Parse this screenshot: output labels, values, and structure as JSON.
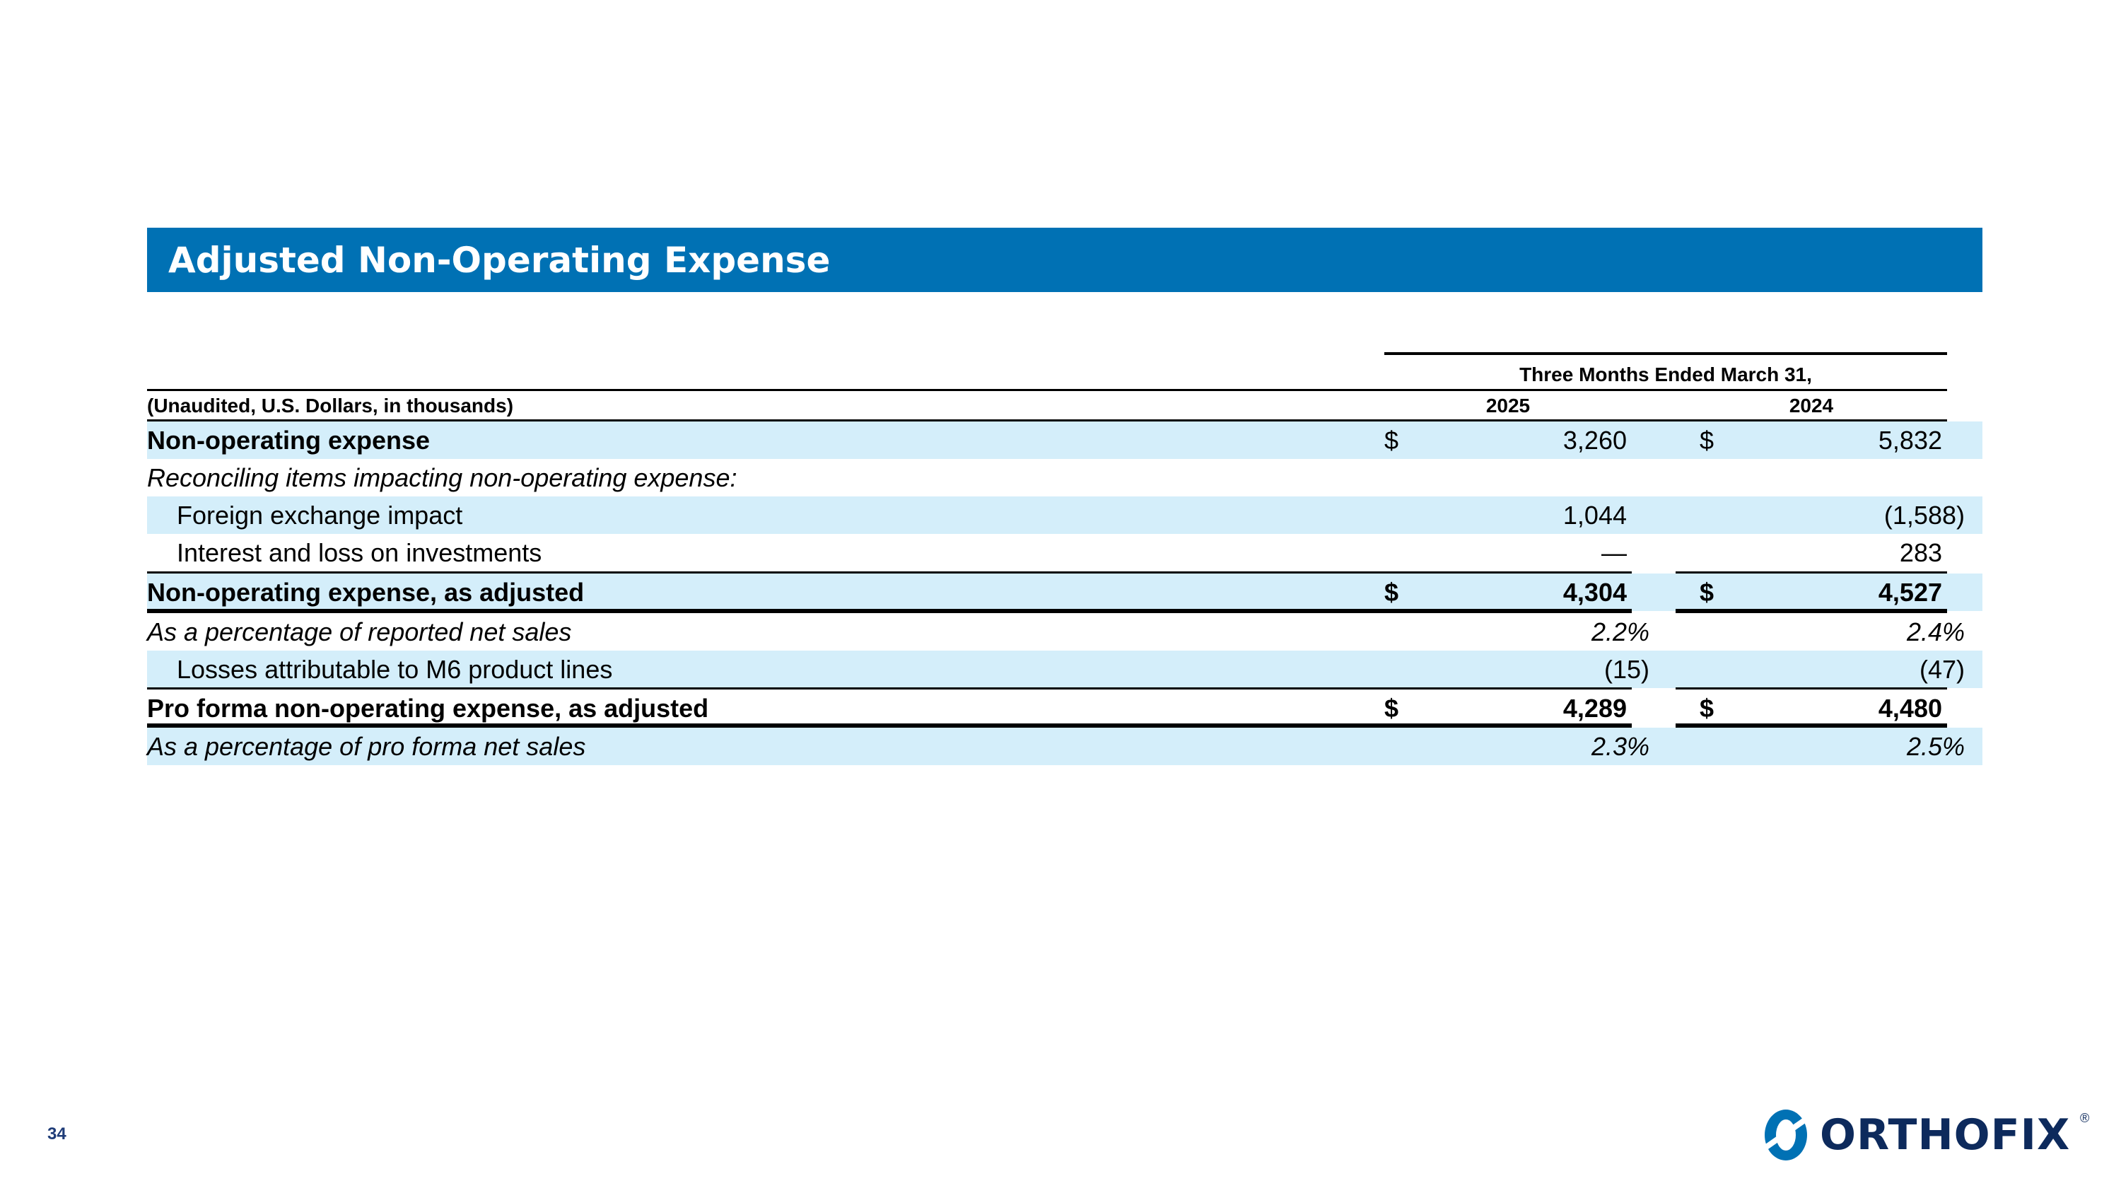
{
  "title": "Adjusted Non-Operating Expense",
  "header": {
    "period": "Three Months Ended March 31,",
    "units": "(Unaudited, U.S. Dollars, in thousands)",
    "year1": "2025",
    "year2": "2024"
  },
  "rows": [
    {
      "label": "Non-operating expense",
      "cur1": "$",
      "v1": "3,260",
      "cur2": "$",
      "v2": "5,832"
    },
    {
      "label": "Reconciling items impacting non-operating expense:"
    },
    {
      "label": "Foreign exchange impact",
      "v1": "1,044",
      "v2": "(1,588",
      "v2_close": ")"
    },
    {
      "label": "Interest and loss on investments",
      "v1": "—",
      "v2": "283"
    },
    {
      "label": "Non-operating expense, as adjusted",
      "cur1": "$",
      "v1": "4,304",
      "cur2": "$",
      "v2": "4,527"
    },
    {
      "label": "As a percentage of reported net sales",
      "v1": "2.2%",
      "v2": "2.4%"
    },
    {
      "label": "Losses attributable to M6 product lines",
      "v1": "(15",
      "v1_close": ")",
      "v2": "(47",
      "v2_close": ")"
    },
    {
      "label": "Pro forma non-operating expense, as adjusted",
      "cur1": "$",
      "v1": "4,289",
      "cur2": "$",
      "v2": "4,480"
    },
    {
      "label": "As a percentage of pro forma net sales",
      "v1": "2.3%",
      "v2": "2.5%"
    }
  ],
  "footer": {
    "page_number": "34",
    "logo_text": "ORTHOFIX",
    "logo_mark": "®"
  },
  "colors": {
    "title_bar": "#0071b4",
    "row_shade": "#d4eefa",
    "logo": "#0d2a5c"
  }
}
